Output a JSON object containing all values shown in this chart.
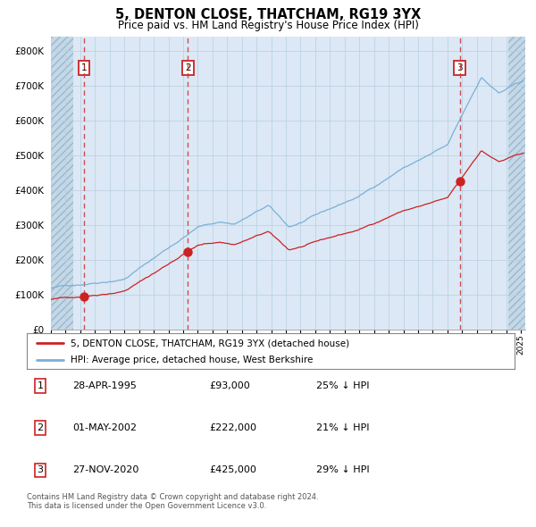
{
  "title": "5, DENTON CLOSE, THATCHAM, RG19 3YX",
  "subtitle": "Price paid vs. HM Land Registry's House Price Index (HPI)",
  "hpi_label": "HPI: Average price, detached house, West Berkshire",
  "property_label": "5, DENTON CLOSE, THATCHAM, RG19 3YX (detached house)",
  "sale1_date": "28-APR-1995",
  "sale1_price": 93000,
  "sale1_pct": "25% ↓ HPI",
  "sale2_date": "01-MAY-2002",
  "sale2_price": 222000,
  "sale2_pct": "21% ↓ HPI",
  "sale3_date": "27-NOV-2020",
  "sale3_price": 425000,
  "sale3_pct": "29% ↓ HPI",
  "ylim_max": 840000,
  "plot_bg_color": "#dce8f5",
  "hpi_color": "#7ab0d8",
  "property_color": "#cc2222",
  "vline_color": "#cc3333",
  "grid_color": "#b8cfe0",
  "hatch_color": "#b8ccd8",
  "footnote": "Contains HM Land Registry data © Crown copyright and database right 2024.\nThis data is licensed under the Open Government Licence v3.0."
}
